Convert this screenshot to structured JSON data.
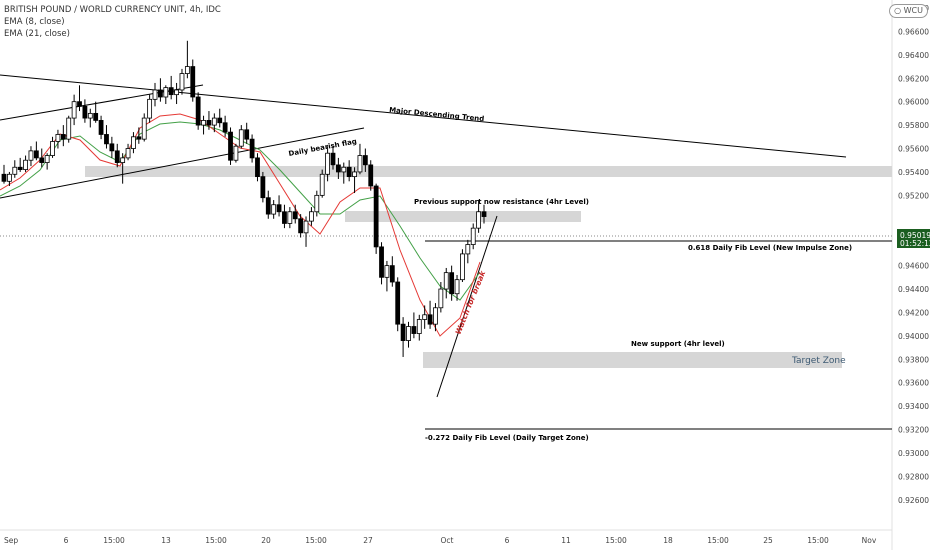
{
  "legend": {
    "title": "BRITISH POUND / WORLD CURRENCY UNIT, 4h, IDC",
    "ema_fast": "EMA (8, close)",
    "ema_slow": "EMA (21, close)"
  },
  "symbol_badge": "WCU",
  "price_axis": {
    "ticks": [
      "0.96800",
      "0.96600",
      "0.96400",
      "0.96200",
      "0.96000",
      "0.95800",
      "0.95600",
      "0.95400",
      "0.95200",
      "0.94800",
      "0.94600",
      "0.94400",
      "0.94200",
      "0.94000",
      "0.93800",
      "0.93600",
      "0.93400",
      "0.93200",
      "0.93000",
      "0.92800",
      "0.92600"
    ],
    "current_price": "0.95019",
    "countdown": "01:52:12",
    "current_price_color": "#1b5e20"
  },
  "time_axis": {
    "ticks": [
      "Sep",
      "6",
      "15:00",
      "13",
      "15:00",
      "20",
      "15:00",
      "27",
      "Oct",
      "6",
      "11",
      "15:00",
      "18",
      "15:00",
      "25",
      "15:00",
      "Nov"
    ]
  },
  "annotations": {
    "major_trend": "Major Descending Trend",
    "bear_flag": "Daily bearish flag",
    "prev_support": "Previous support now resistance (4hr Level)",
    "fib_618": "0.618 Daily Fib Level (New Impulse Zone)",
    "watch_break": "Watch for break",
    "new_support": "New support (4hr level)",
    "target_zone": "Target Zone",
    "fib_272": "-0.272 Daily Fib Level (Daily Target Zone)"
  },
  "colors": {
    "bull": "#ffffff",
    "bear": "#000000",
    "ema_fast": "#e53935",
    "ema_slow": "#43a047",
    "zone": "#d6d6d6",
    "target_text": "#3d5a73",
    "watch_text": "#c62828"
  },
  "chart_data": {
    "type": "candlestick",
    "series": [
      {
        "name": "EMA (8, close)",
        "x": [
          "Sep",
          "Sep 6",
          "Sep 13",
          "Sep 20",
          "Sep 27",
          "Oct",
          "Oct 6"
        ],
        "values": [
          0.9536,
          0.9572,
          0.9586,
          0.955,
          0.9546,
          0.9445,
          0.9488
        ]
      },
      {
        "name": "EMA (21, close)",
        "x": [
          "Sep",
          "Sep 6",
          "Sep 13",
          "Sep 20",
          "Sep 27",
          "Oct",
          "Oct 6"
        ],
        "values": [
          0.9542,
          0.9566,
          0.9584,
          0.9558,
          0.9529,
          0.9462,
          0.9475
        ]
      }
    ],
    "candles": [
      [
        0.9538,
        0.9546,
        0.953,
        0.9532
      ],
      [
        0.9532,
        0.954,
        0.9528,
        0.9538
      ],
      [
        0.9538,
        0.955,
        0.9535,
        0.9544
      ],
      [
        0.9544,
        0.9552,
        0.954,
        0.9542
      ],
      [
        0.9542,
        0.9554,
        0.954,
        0.955
      ],
      [
        0.955,
        0.9562,
        0.9545,
        0.9558
      ],
      [
        0.9558,
        0.9566,
        0.955,
        0.9552
      ],
      [
        0.9552,
        0.956,
        0.9544,
        0.9548
      ],
      [
        0.9548,
        0.9556,
        0.9542,
        0.9554
      ],
      [
        0.9554,
        0.957,
        0.9552,
        0.9566
      ],
      [
        0.9566,
        0.9576,
        0.956,
        0.9572
      ],
      [
        0.9572,
        0.958,
        0.9562,
        0.9568
      ],
      [
        0.9568,
        0.9588,
        0.9565,
        0.9586
      ],
      [
        0.9586,
        0.9606,
        0.958,
        0.96
      ],
      [
        0.96,
        0.9614,
        0.9592,
        0.9596
      ],
      [
        0.9596,
        0.9602,
        0.9582,
        0.9586
      ],
      [
        0.9586,
        0.9594,
        0.9578,
        0.959
      ],
      [
        0.959,
        0.96,
        0.9582,
        0.9584
      ],
      [
        0.9584,
        0.9588,
        0.9568,
        0.9572
      ],
      [
        0.9572,
        0.958,
        0.956,
        0.9564
      ],
      [
        0.9564,
        0.957,
        0.9552,
        0.9558
      ],
      [
        0.9558,
        0.9564,
        0.9544,
        0.9548
      ],
      [
        0.9548,
        0.9556,
        0.953,
        0.9552
      ],
      [
        0.9552,
        0.9564,
        0.955,
        0.956
      ],
      [
        0.956,
        0.9574,
        0.9556,
        0.957
      ],
      [
        0.957,
        0.9578,
        0.9564,
        0.9568
      ],
      [
        0.9568,
        0.959,
        0.9566,
        0.9586
      ],
      [
        0.9586,
        0.9606,
        0.9582,
        0.9602
      ],
      [
        0.9602,
        0.9616,
        0.9596,
        0.961
      ],
      [
        0.961,
        0.962,
        0.96,
        0.9604
      ],
      [
        0.9604,
        0.9614,
        0.9598,
        0.9612
      ],
      [
        0.9612,
        0.9622,
        0.9602,
        0.9606
      ],
      [
        0.9606,
        0.9616,
        0.9598,
        0.961
      ],
      [
        0.961,
        0.9628,
        0.9606,
        0.9624
      ],
      [
        0.9624,
        0.9652,
        0.962,
        0.963
      ],
      [
        0.963,
        0.9636,
        0.96,
        0.9604
      ],
      [
        0.9604,
        0.9608,
        0.9576,
        0.958
      ],
      [
        0.958,
        0.9588,
        0.9572,
        0.9584
      ],
      [
        0.9584,
        0.9592,
        0.9576,
        0.958
      ],
      [
        0.958,
        0.959,
        0.9574,
        0.9586
      ],
      [
        0.9586,
        0.9594,
        0.9578,
        0.9582
      ],
      [
        0.9582,
        0.9588,
        0.957,
        0.9574
      ],
      [
        0.9574,
        0.9578,
        0.9546,
        0.955
      ],
      [
        0.955,
        0.9564,
        0.9548,
        0.9562
      ],
      [
        0.9562,
        0.958,
        0.956,
        0.9576
      ],
      [
        0.9576,
        0.9582,
        0.9564,
        0.9568
      ],
      [
        0.9568,
        0.9572,
        0.9548,
        0.9552
      ],
      [
        0.9552,
        0.9556,
        0.9532,
        0.9536
      ],
      [
        0.9536,
        0.954,
        0.9514,
        0.9518
      ],
      [
        0.9518,
        0.9524,
        0.95,
        0.9504
      ],
      [
        0.9504,
        0.9516,
        0.95,
        0.9512
      ],
      [
        0.9512,
        0.952,
        0.9502,
        0.9506
      ],
      [
        0.9506,
        0.9512,
        0.9492,
        0.9496
      ],
      [
        0.9496,
        0.951,
        0.9492,
        0.9506
      ],
      [
        0.9506,
        0.9512,
        0.9496,
        0.95
      ],
      [
        0.95,
        0.9504,
        0.9484,
        0.9488
      ],
      [
        0.9488,
        0.9502,
        0.9476,
        0.9498
      ],
      [
        0.9498,
        0.951,
        0.9494,
        0.9506
      ],
      [
        0.9506,
        0.9524,
        0.9502,
        0.952
      ],
      [
        0.952,
        0.9542,
        0.9518,
        0.9538
      ],
      [
        0.9538,
        0.9562,
        0.9532,
        0.9556
      ],
      [
        0.9556,
        0.9562,
        0.9542,
        0.9546
      ],
      [
        0.9546,
        0.9552,
        0.9534,
        0.954
      ],
      [
        0.954,
        0.9548,
        0.953,
        0.9544
      ],
      [
        0.9544,
        0.955,
        0.9532,
        0.9536
      ],
      [
        0.9536,
        0.9544,
        0.9522,
        0.954
      ],
      [
        0.954,
        0.9564,
        0.9538,
        0.9554
      ],
      [
        0.9554,
        0.956,
        0.954,
        0.9546
      ],
      [
        0.9546,
        0.955,
        0.9524,
        0.9528
      ],
      [
        0.9528,
        0.953,
        0.947,
        0.9476
      ],
      [
        0.9476,
        0.948,
        0.9444,
        0.945
      ],
      [
        0.945,
        0.9464,
        0.9438,
        0.946
      ],
      [
        0.946,
        0.9468,
        0.9442,
        0.9446
      ],
      [
        0.9446,
        0.945,
        0.9404,
        0.941
      ],
      [
        0.941,
        0.9416,
        0.9382,
        0.9396
      ],
      [
        0.9396,
        0.9412,
        0.939,
        0.9408
      ],
      [
        0.9408,
        0.942,
        0.9398,
        0.9402
      ],
      [
        0.9402,
        0.9418,
        0.9396,
        0.9414
      ],
      [
        0.9414,
        0.9426,
        0.9406,
        0.9418
      ],
      [
        0.9418,
        0.943,
        0.9406,
        0.941
      ],
      [
        0.941,
        0.9428,
        0.9404,
        0.9424
      ],
      [
        0.9424,
        0.9446,
        0.942,
        0.944
      ],
      [
        0.944,
        0.9458,
        0.9432,
        0.9454
      ],
      [
        0.9454,
        0.946,
        0.943,
        0.9436
      ],
      [
        0.9436,
        0.9452,
        0.943,
        0.9448
      ],
      [
        0.9448,
        0.9474,
        0.9446,
        0.947
      ],
      [
        0.947,
        0.9482,
        0.9462,
        0.9478
      ],
      [
        0.9478,
        0.9496,
        0.9474,
        0.9492
      ],
      [
        0.9492,
        0.9516,
        0.9488,
        0.9506
      ],
      [
        0.9506,
        0.9512,
        0.9496,
        0.95019
      ]
    ],
    "drawn_levels": [
      {
        "label": "0.618 Daily Fib Level (New Impulse Zone)",
        "value": 0.9497
      },
      {
        "label": "-0.272 Daily Fib Level (Daily Target Zone)",
        "value": 0.9333
      },
      {
        "label": "New support (4hr level)",
        "from": 0.9386,
        "to": 0.94
      },
      {
        "label": "Previous support now resistance (4hr Level)",
        "from": 0.9518,
        "to": 0.9522
      },
      {
        "label": "",
        "from": 0.9554,
        "to": 0.9563
      }
    ],
    "ylim": [
      0.925,
      0.969
    ],
    "grid": false
  }
}
